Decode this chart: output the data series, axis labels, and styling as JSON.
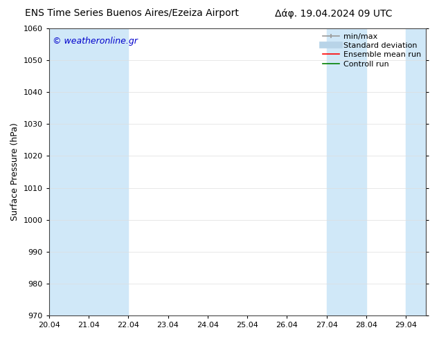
{
  "title_left": "ENS Time Series Buenos Aires/Ezeiza Airport",
  "title_right": "Δάφ. 19.04.2024 09 UTC",
  "ylabel": "Surface Pressure (hPa)",
  "ylim": [
    970,
    1060
  ],
  "yticks": [
    970,
    980,
    990,
    1000,
    1010,
    1020,
    1030,
    1040,
    1050,
    1060
  ],
  "xtick_labels": [
    "20.04",
    "21.04",
    "22.04",
    "23.04",
    "24.04",
    "25.04",
    "26.04",
    "27.04",
    "28.04",
    "29.04"
  ],
  "watermark": "© weatheronline.gr",
  "watermark_color": "#0000cc",
  "bg_color": "#ffffff",
  "plot_bg_color": "#ffffff",
  "shaded_bands": [
    {
      "x_start": 20.0,
      "x_end": 22.0,
      "color": "#d0e8f8"
    },
    {
      "x_start": 27.0,
      "x_end": 28.0,
      "color": "#d0e8f8"
    },
    {
      "x_start": 29.0,
      "x_end": 29.5,
      "color": "#d0e8f8"
    }
  ],
  "xmin": 20.0,
  "xmax": 29.5,
  "font_size_title": 10,
  "font_size_axis": 9,
  "font_size_tick": 8,
  "font_size_legend": 8,
  "font_size_watermark": 9,
  "legend_gray": "#999999",
  "legend_blue": "#b8d4e8",
  "legend_red": "#ff0000",
  "legend_green": "#008000"
}
